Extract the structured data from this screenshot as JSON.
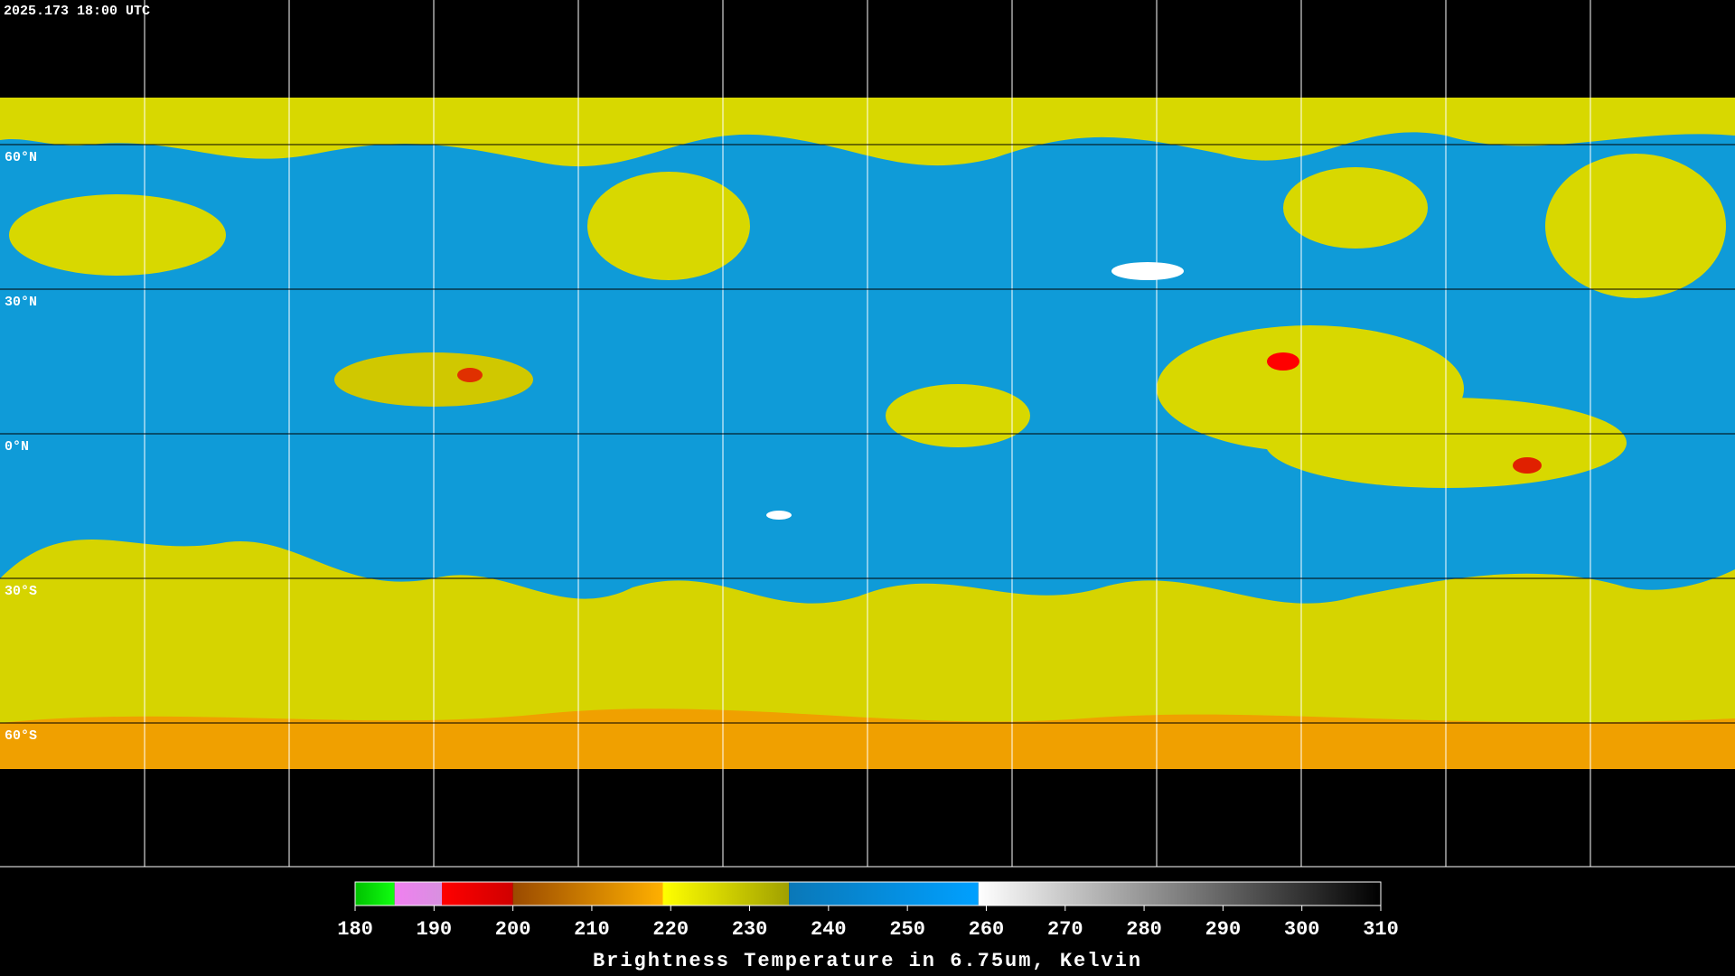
{
  "timestamp": "2025.173 18:00 UTC",
  "lat_labels": [
    "60°N",
    "30°N",
    "0°N",
    "30°S",
    "60°S"
  ],
  "colorbar": {
    "title": "Brightness Temperature in 6.75um, Kelvin",
    "range": [
      180,
      310
    ],
    "ticks": [
      180,
      190,
      200,
      210,
      220,
      230,
      240,
      250,
      260,
      270,
      280,
      290,
      300,
      310
    ],
    "segments": [
      {
        "from": 180,
        "to": 185,
        "colors": [
          "#00c000",
          "#10ff10"
        ]
      },
      {
        "from": 185,
        "to": 191,
        "colors": [
          "#f080f0",
          "#d890e0"
        ]
      },
      {
        "from": 191,
        "to": 200,
        "colors": [
          "#ff0000",
          "#d00000"
        ]
      },
      {
        "from": 200,
        "to": 219,
        "colors": [
          "#9a4a00",
          "#ffb000"
        ]
      },
      {
        "from": 219,
        "to": 235,
        "colors": [
          "#ffff00",
          "#a0a000"
        ]
      },
      {
        "from": 235,
        "to": 259,
        "colors": [
          "#0a78b8",
          "#00a0ff"
        ]
      },
      {
        "from": 259,
        "to": 310,
        "colors": [
          "#ffffff",
          "#000000"
        ]
      }
    ]
  }
}
